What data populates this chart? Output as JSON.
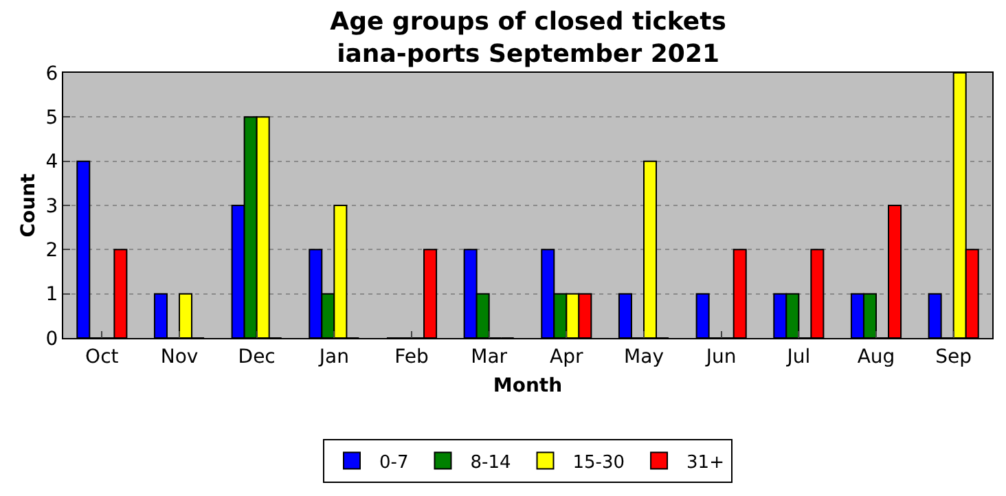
{
  "chart_data": {
    "type": "bar",
    "title": "Age groups of closed tickets\niana-ports September 2021",
    "xlabel": "Month",
    "ylabel": "Count",
    "categories": [
      "Oct",
      "Nov",
      "Dec",
      "Jan",
      "Feb",
      "Mar",
      "Apr",
      "May",
      "Jun",
      "Jul",
      "Aug",
      "Sep"
    ],
    "series": [
      {
        "name": "0-7",
        "color": "#0000ff",
        "values": [
          4,
          1,
          3,
          2,
          0,
          2,
          2,
          1,
          1,
          1,
          1,
          1
        ]
      },
      {
        "name": "8-14",
        "color": "#008000",
        "values": [
          0,
          0,
          5,
          1,
          0,
          1,
          1,
          0,
          0,
          1,
          1,
          0
        ]
      },
      {
        "name": "15-30",
        "color": "#ffff00",
        "values": [
          0,
          1,
          5,
          3,
          0,
          0,
          1,
          4,
          0,
          0,
          0,
          6
        ]
      },
      {
        "name": "31+",
        "color": "#ff0000",
        "values": [
          2,
          0,
          0,
          0,
          2,
          0,
          1,
          0,
          2,
          2,
          3,
          2
        ]
      }
    ],
    "ylim": [
      0,
      6
    ],
    "yticks": [
      0,
      1,
      2,
      3,
      4,
      5,
      6
    ],
    "grid": "y",
    "legend": "bottom"
  }
}
